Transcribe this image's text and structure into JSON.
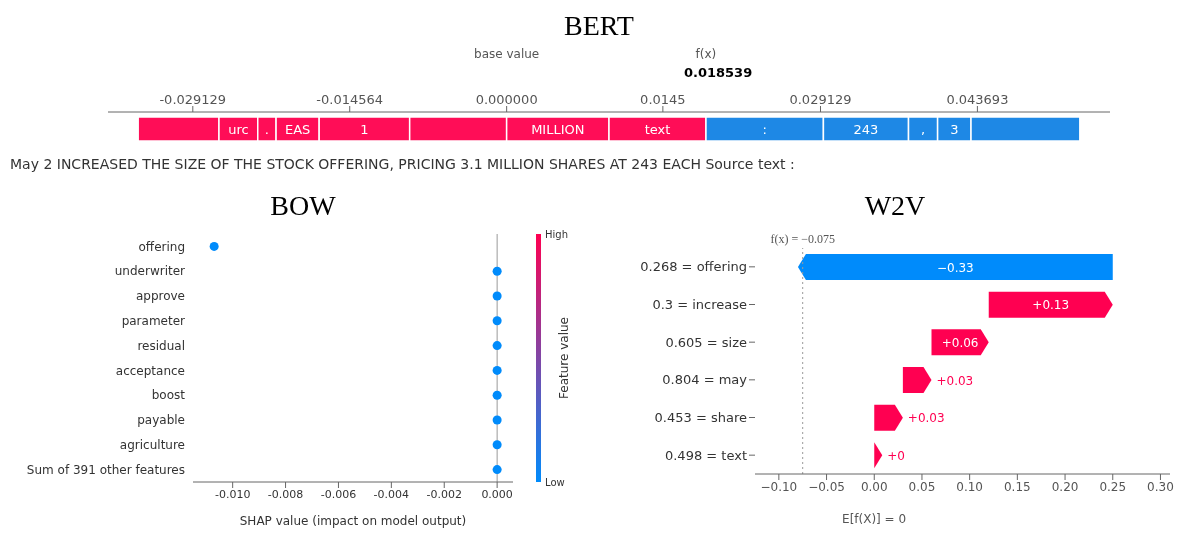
{
  "chart_data": [
    {
      "type": "bar",
      "orientation": "horizontal",
      "title": "BERT",
      "categories": [
        null
      ],
      "xlim": [
        -0.037,
        0.056
      ],
      "xticks": [
        {
          "value": -0.029129,
          "label": "-0.029129"
        },
        {
          "value": -0.014564,
          "label": "-0.014564"
        },
        {
          "value": 0,
          "label": "0.000000"
        },
        0.0145,
        {
          "value": 0.029129,
          "label": "0.029129"
        },
        {
          "value": 0.043693,
          "label": "0.043693"
        }
      ],
      "series": [
        {
          "color": "#ff0d57",
          "values": [
            0.0075
          ],
          "base": [
            -0.0342
          ]
        },
        {
          "name": "urc",
          "color": "#ff0d57",
          "values": [
            0.0036
          ],
          "base": [
            -0.0267
          ]
        },
        {
          "name": ".",
          "color": "#ff0d57",
          "values": [
            0.0017
          ],
          "base": [
            -0.0231
          ]
        },
        {
          "name": "EAS",
          "color": "#ff0d57",
          "values": [
            0.004
          ],
          "base": [
            -0.0214
          ]
        },
        {
          "name": "1",
          "color": "#ff0d57",
          "values": [
            0.0084
          ],
          "base": [
            -0.0174
          ]
        },
        {
          "color": "#ff0d57",
          "values": [
            0.009
          ],
          "base": [
            -0.009
          ]
        },
        {
          "name": "MILLION",
          "color": "#ff0d57",
          "values": [
            0.0095
          ],
          "base": [
            0
          ]
        },
        {
          "name": "text",
          "color": "#ff0d57",
          "values": [
            0.009
          ],
          "base": [
            0.0095
          ]
        },
        {
          "name": ":",
          "color": "#1e88e5",
          "values": [
            -0.0109
          ],
          "base": [
            0.0294
          ]
        },
        {
          "name": "243",
          "color": "#1e88e5",
          "values": [
            -0.0079
          ],
          "base": [
            0.0373
          ]
        },
        {
          "name": ",",
          "color": "#1e88e5",
          "values": [
            -0.0027
          ],
          "base": [
            0.04
          ]
        },
        {
          "name": "3",
          "color": "#1e88e5",
          "values": [
            -0.0031
          ],
          "base": [
            0.0431
          ]
        },
        {
          "color": "#1e88e5",
          "values": [
            -0.0101
          ],
          "base": [
            0.0532
          ]
        }
      ],
      "annotations": [
        "base value",
        "f(x)",
        "0.018539",
        "May 2 INCREASED THE SIZE OF THE STOCK OFFERING, PRICING 3.1 MILLION SHARES AT 243 EACH Source text :"
      ]
    },
    {
      "type": "scatter",
      "orientation": "horizontal",
      "title": "BOW",
      "categories": [
        "offering",
        "underwriter",
        "approve",
        "parameter",
        "residual",
        "acceptance",
        "boost",
        "payable",
        "agriculture",
        "Sum of 391 other features"
      ],
      "values": [
        -0.0107,
        0,
        0,
        0,
        0,
        0,
        0,
        0,
        0,
        0
      ],
      "color": "#008bfb",
      "clim": [
        0,
        1
      ],
      "cticks": [
        {
          "value": 0,
          "label": "Low"
        },
        {
          "value": 1,
          "label": "High"
        }
      ],
      "clabel": "Feature value",
      "xlabel": "SHAP value (impact on model output)",
      "xlim": [
        -0.0115,
        0.0006
      ],
      "xticks": [
        {
          "value": -0.01,
          "label": "-0.010"
        },
        {
          "value": -0.008,
          "label": "-0.008"
        },
        {
          "value": -0.006,
          "label": "-0.006"
        },
        {
          "value": -0.004,
          "label": "-0.004"
        },
        {
          "value": -0.002,
          "label": "-0.002"
        },
        {
          "value": 0,
          "label": "0.000"
        }
      ],
      "ref_lines": [
        {
          "axis": "x",
          "value": 0,
          "color": "#999999"
        }
      ]
    },
    {
      "type": "bar",
      "orientation": "horizontal",
      "title": "W2V",
      "categories": [
        "0.268 = offering",
        "0.3 = increase",
        "0.605 = size",
        "0.804 = may",
        "0.453 = share",
        "0.498 = text"
      ],
      "values": [
        -0.33,
        0.13,
        0.06,
        0.03,
        0.03,
        0
      ],
      "base": [
        0.25,
        0.12,
        0.06,
        0.03,
        0,
        null
      ],
      "colors": [
        "#008bfb",
        "#ff0051",
        "#ff0051",
        "#ff0051",
        "#ff0051",
        "#ff0051"
      ],
      "value_labels": [
        "−0.33",
        "+0.13",
        "+0.06",
        "+0.03",
        "+0.03",
        "+0"
      ],
      "xlim": [
        -0.125,
        0.31
      ],
      "xticks": [
        {
          "value": -0.1,
          "label": "−0.10"
        },
        {
          "value": -0.05,
          "label": "−0.05"
        },
        {
          "value": 0,
          "label": "0.00"
        },
        {
          "value": 0.05,
          "label": "0.05"
        },
        {
          "value": 0.1,
          "label": "0.10"
        },
        {
          "value": 0.15,
          "label": "0.15"
        },
        {
          "value": 0.2,
          "label": "0.20"
        },
        {
          "value": 0.25,
          "label": "0.25"
        },
        {
          "value": 0.3,
          "label": "0.30"
        }
      ],
      "ref_lines": [
        {
          "axis": "x",
          "value": -0.075,
          "label": "f(x) = −0.075",
          "color": "#999999",
          "line_style": "dotted"
        }
      ],
      "annotations": [
        "E[f(X)] = 0"
      ]
    }
  ]
}
